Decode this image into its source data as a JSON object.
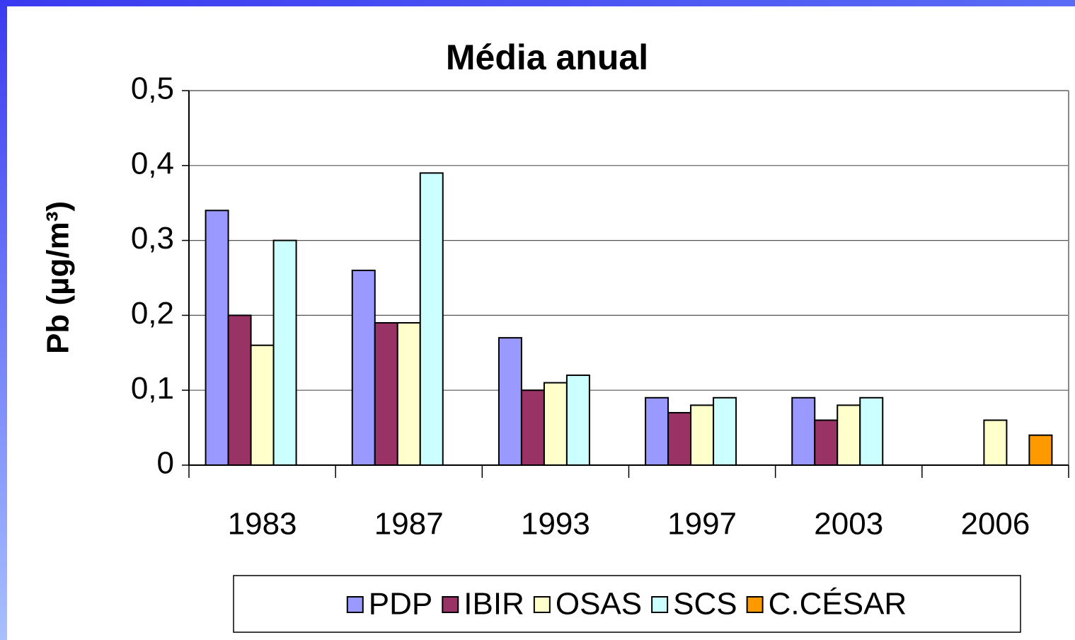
{
  "chart_data": {
    "type": "bar",
    "title": "Média anual",
    "y_label": "Pb (µg/m³)",
    "categories": [
      "1983",
      "1987",
      "1993",
      "1997",
      "2003",
      "2006"
    ],
    "series": [
      {
        "name": "PDP",
        "color": "#9999ff",
        "values": [
          0.34,
          0.26,
          0.17,
          0.09,
          0.09,
          null
        ]
      },
      {
        "name": "IBIR",
        "color": "#993366",
        "values": [
          0.2,
          0.19,
          0.1,
          0.07,
          0.06,
          null
        ]
      },
      {
        "name": "OSAS",
        "color": "#ffffcc",
        "values": [
          0.16,
          0.19,
          0.11,
          0.08,
          0.08,
          0.06
        ]
      },
      {
        "name": "SCS",
        "color": "#ccffff",
        "values": [
          0.3,
          0.39,
          0.12,
          0.09,
          0.09,
          null
        ]
      },
      {
        "name": "C.CÉSAR",
        "color": "#ff9900",
        "values": [
          null,
          null,
          null,
          null,
          null,
          0.04
        ]
      }
    ],
    "ylim": [
      0,
      0.5
    ],
    "yticks": [
      0,
      {
        "value": 0.1,
        "label": "0,1"
      },
      {
        "value": 0.2,
        "label": "0,2"
      },
      {
        "value": 0.3,
        "label": "0,3"
      },
      {
        "value": 0.4,
        "label": "0,4"
      },
      {
        "value": 0.5,
        "label": "0,5"
      }
    ],
    "grid": true,
    "legend": "bottom"
  }
}
